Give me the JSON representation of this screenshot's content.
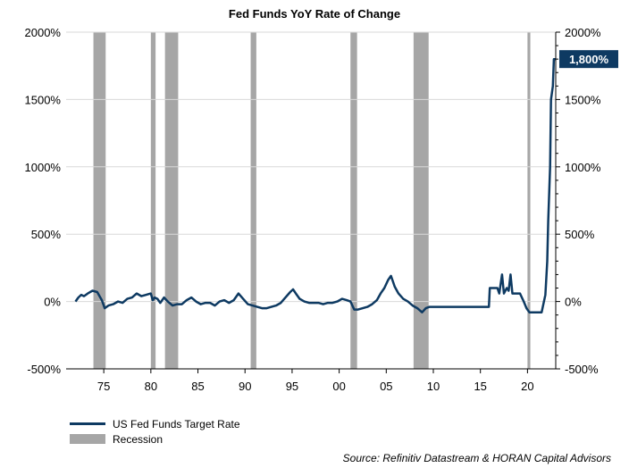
{
  "chart_data": {
    "type": "line",
    "title": "Fed Funds YoY Rate of Change",
    "source": "Source: Refinitiv Datastream & HORAN Capital Advisors",
    "xlim": [
      1971,
      2023
    ],
    "ylim": [
      -500,
      2000
    ],
    "x_ticks": [
      1975,
      1980,
      1985,
      1990,
      1995,
      2000,
      2005,
      2010,
      2015,
      2020
    ],
    "x_tick_labels": [
      "75",
      "80",
      "85",
      "90",
      "95",
      "00",
      "05",
      "10",
      "15",
      "20"
    ],
    "y_ticks": [
      -500,
      0,
      500,
      1000,
      1500,
      2000
    ],
    "y_tick_labels": [
      "-500%",
      "0%",
      "500%",
      "1000%",
      "1500%",
      "2000%"
    ],
    "grid": "horizontal",
    "legend_position": "bottom-left",
    "end_label": "1,800%",
    "colors": {
      "series": "#0e3a62",
      "recession": "#a6a6a6",
      "grid": "#d9d9d9"
    },
    "series": [
      {
        "name": "US Fed Funds Target Rate",
        "x": [
          1972.0,
          1972.3,
          1972.6,
          1972.9,
          1973.3,
          1973.8,
          1974.3,
          1974.8,
          1975.1,
          1975.5,
          1976.0,
          1976.5,
          1977.0,
          1977.5,
          1978.0,
          1978.5,
          1979.0,
          1979.5,
          1980.0,
          1980.2,
          1980.4,
          1980.7,
          1981.0,
          1981.4,
          1981.8,
          1982.3,
          1982.8,
          1983.3,
          1983.8,
          1984.3,
          1984.8,
          1985.3,
          1985.8,
          1986.3,
          1986.8,
          1987.3,
          1987.8,
          1988.3,
          1988.8,
          1989.3,
          1989.8,
          1990.3,
          1990.8,
          1991.3,
          1991.8,
          1992.3,
          1992.8,
          1993.3,
          1993.8,
          1994.3,
          1994.8,
          1995.1,
          1995.4,
          1995.8,
          1996.3,
          1996.8,
          1997.3,
          1997.8,
          1998.3,
          1998.8,
          1999.3,
          1999.8,
          2000.3,
          2000.8,
          2001.2,
          2001.6,
          2002.0,
          2002.5,
          2003.0,
          2003.5,
          2004.0,
          2004.4,
          2004.8,
          2005.2,
          2005.5,
          2005.9,
          2006.3,
          2006.8,
          2007.3,
          2007.8,
          2008.3,
          2008.8,
          2009.2,
          2009.6,
          2015.9,
          2016.0,
          2016.8,
          2017.0,
          2017.3,
          2017.5,
          2017.8,
          2018.0,
          2018.2,
          2018.4,
          2018.6,
          2018.9,
          2019.2,
          2019.6,
          2019.9,
          2020.2,
          2020.5,
          2021.0,
          2021.5,
          2021.9,
          2022.1,
          2022.2,
          2022.4,
          2022.5,
          2022.7,
          2022.8,
          2022.95
        ],
        "values": [
          0,
          30,
          50,
          40,
          60,
          80,
          70,
          10,
          -50,
          -30,
          -20,
          0,
          -10,
          20,
          30,
          60,
          40,
          50,
          60,
          10,
          30,
          20,
          -10,
          30,
          0,
          -30,
          -20,
          -20,
          10,
          30,
          0,
          -20,
          -10,
          -10,
          -30,
          0,
          10,
          -10,
          10,
          60,
          20,
          -20,
          -30,
          -40,
          -50,
          -50,
          -40,
          -30,
          -10,
          30,
          70,
          90,
          60,
          20,
          0,
          -10,
          -10,
          -10,
          -20,
          -10,
          -10,
          0,
          20,
          10,
          0,
          -60,
          -60,
          -50,
          -40,
          -20,
          10,
          60,
          100,
          160,
          190,
          110,
          60,
          20,
          0,
          -30,
          -50,
          -80,
          -50,
          -40,
          -40,
          100,
          100,
          60,
          200,
          60,
          100,
          80,
          200,
          60,
          60,
          60,
          60,
          0,
          -50,
          -80,
          -80,
          -80,
          -80,
          50,
          300,
          600,
          1000,
          1500,
          1600,
          1800,
          1800
        ]
      }
    ],
    "recessions": [
      {
        "start": 1973.9,
        "end": 1975.2
      },
      {
        "start": 1980.0,
        "end": 1980.5
      },
      {
        "start": 1981.5,
        "end": 1982.9
      },
      {
        "start": 1990.6,
        "end": 1991.2
      },
      {
        "start": 2001.2,
        "end": 2001.9
      },
      {
        "start": 2007.9,
        "end": 2009.5
      },
      {
        "start": 2020.0,
        "end": 2020.3
      }
    ]
  }
}
